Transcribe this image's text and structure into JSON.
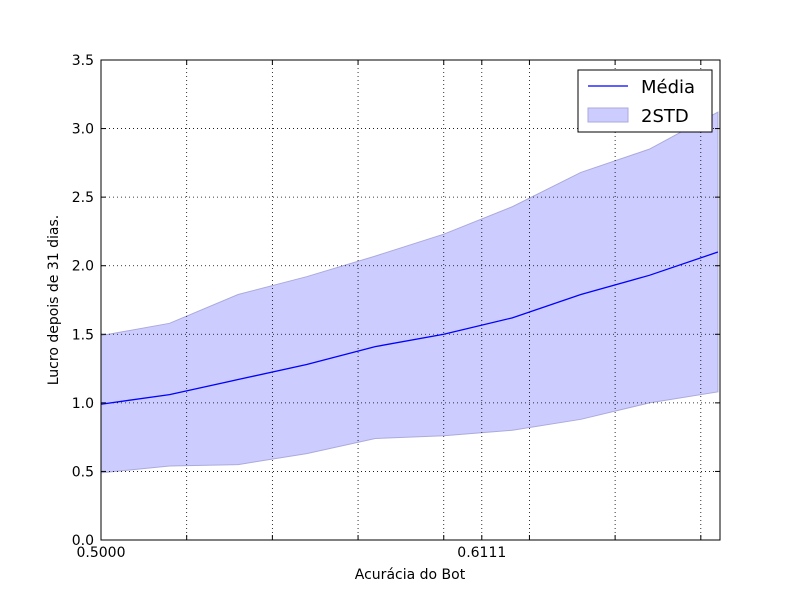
{
  "chart_data": {
    "type": "line",
    "title": "",
    "xlabel": "Acurácia do Bot",
    "ylabel": "Lucro depois de 31 dias.",
    "xlim": [
      0.5,
      0.6806
    ],
    "ylim": [
      0,
      3.5
    ],
    "x_ticks": [
      0.5,
      0.6111
    ],
    "x_tick_labels": [
      "0.5000",
      "0.6111"
    ],
    "x_grid_lines": [
      0.5,
      0.525,
      0.55,
      0.575,
      0.6,
      0.6111,
      0.625,
      0.65,
      0.675
    ],
    "y_ticks": [
      0,
      0.5,
      1.0,
      1.5,
      2.0,
      2.5,
      3.0,
      3.5
    ],
    "y_tick_labels": [
      "0.0",
      "0.5",
      "1.0",
      "1.5",
      "2.0",
      "2.5",
      "3.0",
      "3.5"
    ],
    "grid": true,
    "legend": "top-right",
    "x": [
      0.5,
      0.52,
      0.54,
      0.56,
      0.58,
      0.6,
      0.62,
      0.64,
      0.66,
      0.68
    ],
    "series": [
      {
        "name": "Média",
        "kind": "line",
        "color": "#0000ff",
        "values": [
          0.99,
          1.06,
          1.17,
          1.28,
          1.41,
          1.5,
          1.62,
          1.79,
          1.93,
          2.1
        ]
      },
      {
        "name": "2STD",
        "kind": "band",
        "color": "#ccccff",
        "edge_color": "#aaaadd",
        "lower": [
          0.49,
          0.54,
          0.55,
          0.63,
          0.74,
          0.76,
          0.8,
          0.88,
          1.0,
          1.08
        ],
        "upper": [
          1.49,
          1.58,
          1.79,
          1.92,
          2.07,
          2.23,
          2.43,
          2.68,
          2.85,
          3.12
        ]
      }
    ]
  }
}
